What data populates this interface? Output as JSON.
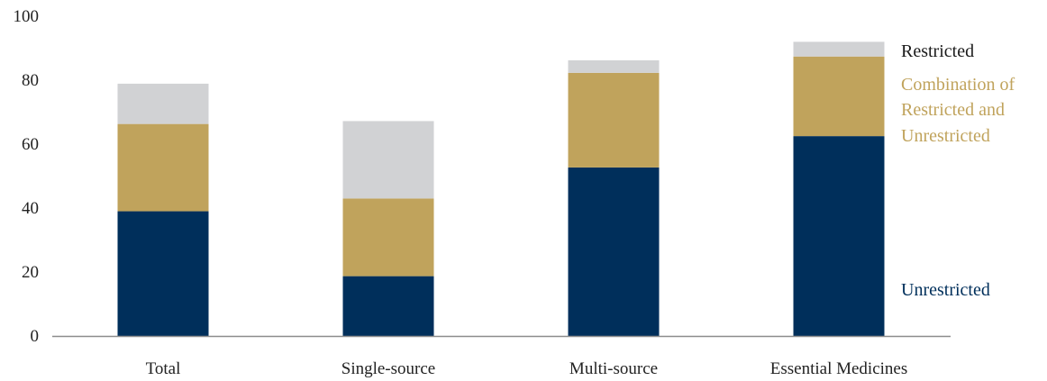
{
  "chart_data": {
    "type": "bar",
    "stacked": true,
    "title": "",
    "xlabel": "",
    "ylabel": "",
    "ylim": [
      0,
      100
    ],
    "yticks": [
      0,
      20,
      40,
      60,
      80,
      100
    ],
    "grid": false,
    "legend_position": "right",
    "categories": [
      "Total",
      "Single-source",
      "Multi-source",
      "Essential Medicines"
    ],
    "series": [
      {
        "name": "Unrestricted",
        "color": "#002f5b",
        "values": [
          39,
          18.7,
          52.7,
          62.5
        ]
      },
      {
        "name": "Combination of Restricted and Unrestricted",
        "color": "#c0a35c",
        "values": [
          27.3,
          24.3,
          29.6,
          24.9
        ]
      },
      {
        "name": "Restricted",
        "color": "#d1d2d4",
        "values": [
          12.6,
          24.2,
          3.9,
          4.6
        ]
      }
    ],
    "legend": [
      {
        "key": "restricted",
        "lines": [
          "Restricted"
        ],
        "color": "#1a1a1a"
      },
      {
        "key": "combination",
        "lines": [
          "Combination of",
          "Restricted and",
          "Unrestricted"
        ],
        "color": "#c0a35c"
      },
      {
        "key": "unrestricted",
        "lines": [
          "Unrestricted"
        ],
        "color": "#002f5b"
      }
    ]
  }
}
